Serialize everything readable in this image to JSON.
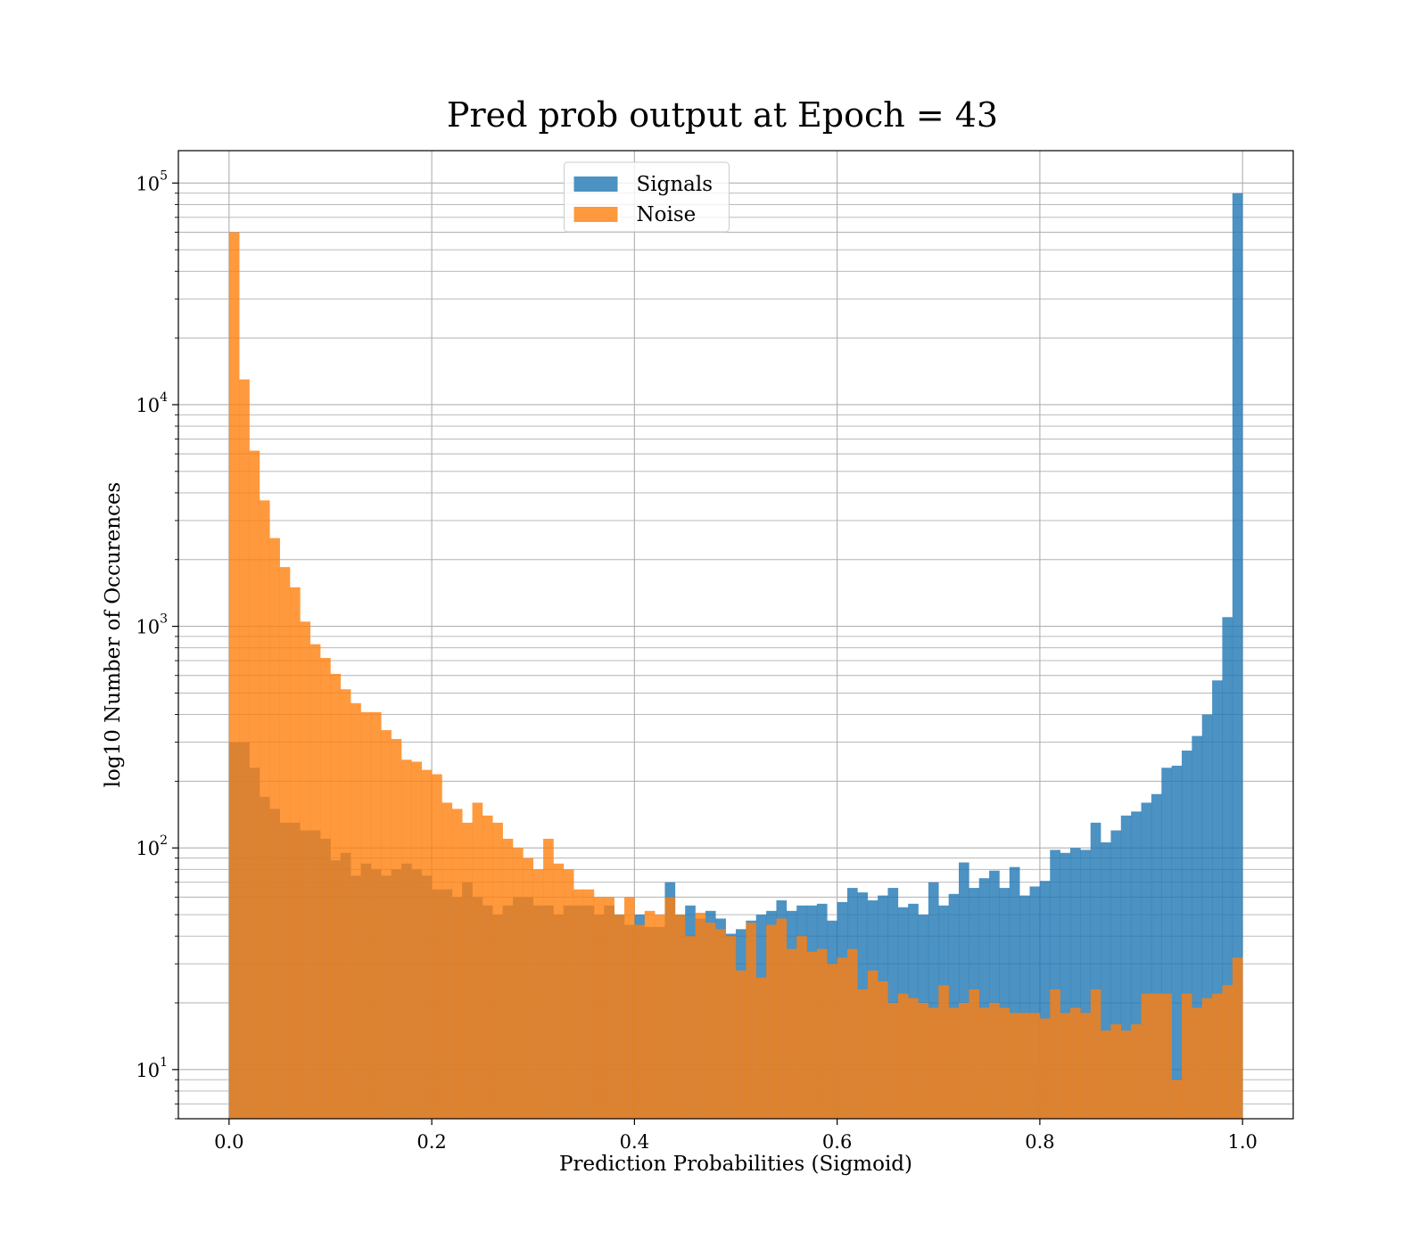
{
  "chart_data": {
    "type": "bar",
    "title": "Pred prob output at Epoch = 43",
    "xlabel": "Prediction Probabilities (Sigmoid)",
    "ylabel": "log10 Number of Occurences",
    "xlim": [
      -0.05,
      1.05
    ],
    "ylim": [
      6,
      140000
    ],
    "yscale": "log",
    "grid": true,
    "legend_position": "upper center",
    "bins": 100,
    "bin_range": [
      0.0,
      1.0
    ],
    "x_ticks": [
      "0.0",
      "0.2",
      "0.4",
      "0.6",
      "0.8",
      "1.0"
    ],
    "y_ticks": [
      {
        "base": "10",
        "exp": "1"
      },
      {
        "base": "10",
        "exp": "2"
      },
      {
        "base": "10",
        "exp": "3"
      },
      {
        "base": "10",
        "exp": "4"
      },
      {
        "base": "10",
        "exp": "5"
      }
    ],
    "series": [
      {
        "name": "Signals",
        "color": "#1f77b4",
        "values": [
          300,
          300,
          230,
          170,
          150,
          130,
          130,
          120,
          120,
          110,
          88,
          95,
          75,
          85,
          80,
          75,
          80,
          85,
          80,
          75,
          65,
          65,
          60,
          70,
          60,
          55,
          50,
          55,
          60,
          60,
          55,
          55,
          50,
          55,
          55,
          55,
          50,
          55,
          50,
          45,
          50,
          44,
          44,
          70,
          50,
          55,
          48,
          52,
          48,
          41,
          43,
          47,
          50,
          52,
          58,
          52,
          55,
          55,
          56,
          47,
          57,
          66,
          63,
          58,
          61,
          66,
          54,
          56,
          50,
          70,
          55,
          62,
          86,
          66,
          73,
          79,
          66,
          82,
          61,
          67,
          71,
          98,
          95,
          100,
          98,
          130,
          106,
          120,
          140,
          146,
          160,
          175,
          230,
          235,
          275,
          320,
          400,
          570,
          1100,
          90000
        ]
      },
      {
        "name": "Noise",
        "color": "#ff7f0e",
        "values": [
          60000,
          13000,
          6200,
          3700,
          2500,
          1850,
          1500,
          1050,
          830,
          720,
          610,
          520,
          450,
          410,
          410,
          340,
          310,
          250,
          245,
          225,
          215,
          160,
          150,
          130,
          160,
          140,
          130,
          110,
          100,
          90,
          80,
          110,
          85,
          80,
          65,
          65,
          60,
          60,
          50,
          60,
          45,
          52,
          50,
          60,
          50,
          40,
          51,
          46,
          43,
          40,
          28,
          46,
          26,
          45,
          48,
          35,
          40,
          34,
          35,
          30,
          32,
          35,
          23,
          28,
          25,
          20,
          22,
          21,
          20,
          19,
          24,
          19,
          20,
          23,
          19,
          20,
          19,
          18,
          18,
          18,
          17,
          23,
          18,
          19,
          18,
          23,
          15,
          16,
          15,
          16,
          22,
          22,
          22,
          9,
          22,
          19,
          21,
          22,
          24,
          32
        ]
      }
    ]
  }
}
